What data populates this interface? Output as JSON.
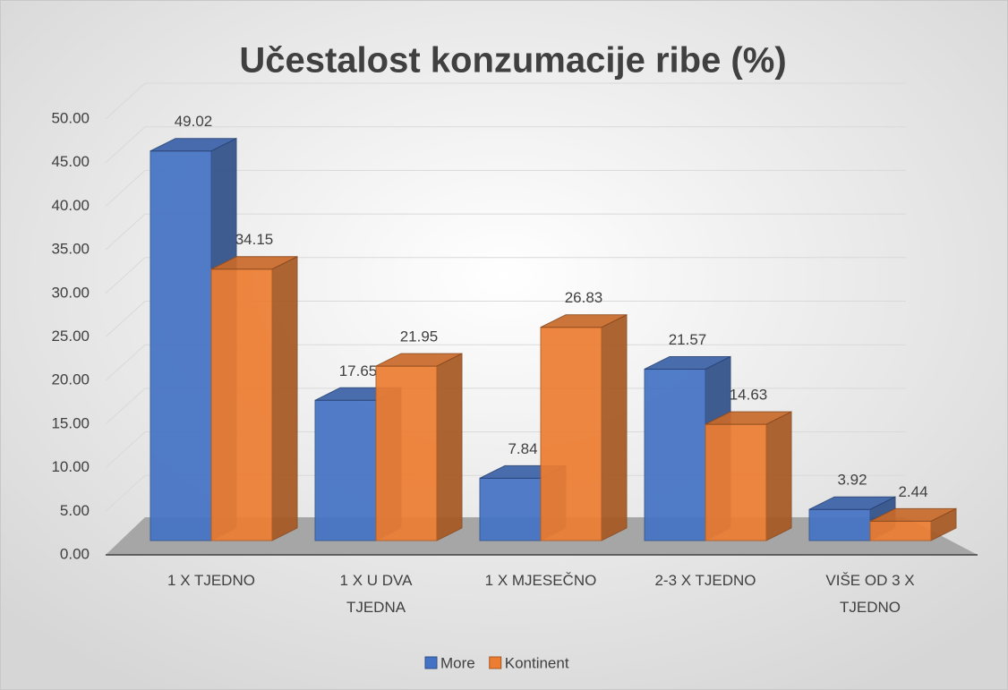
{
  "chart_data": {
    "type": "bar3d",
    "title": "Učestalost konzumacije ribe (%)",
    "categories": [
      "1 X TJEDNO",
      "1 X U DVA TJEDNA",
      "1 X MJESEČNO",
      "2-3 X TJEDNO",
      "VIŠE OD 3 X TJEDNO"
    ],
    "series": [
      {
        "name": "More",
        "color": "#4472c4",
        "values": [
          49.02,
          17.65,
          7.84,
          21.57,
          3.92
        ]
      },
      {
        "name": "Kontinent",
        "color": "#ed7d31",
        "values": [
          34.15,
          21.95,
          26.83,
          14.63,
          2.44
        ]
      }
    ],
    "ylim": [
      0,
      50
    ],
    "yticks": [
      {
        "value": 0,
        "label": "0.00"
      },
      {
        "value": 5,
        "label": "5.00"
      },
      {
        "value": 10,
        "label": "10.00"
      },
      {
        "value": 15,
        "label": "15.00"
      },
      {
        "value": 20,
        "label": "20.00"
      },
      {
        "value": 25,
        "label": "25.00"
      },
      {
        "value": 30,
        "label": "30.00"
      },
      {
        "value": 35,
        "label": "35.00"
      },
      {
        "value": 40,
        "label": "40.00"
      },
      {
        "value": 45,
        "label": "45.00"
      },
      {
        "value": 50,
        "label": "50.00"
      }
    ],
    "grid": true,
    "legend": "bottom"
  }
}
